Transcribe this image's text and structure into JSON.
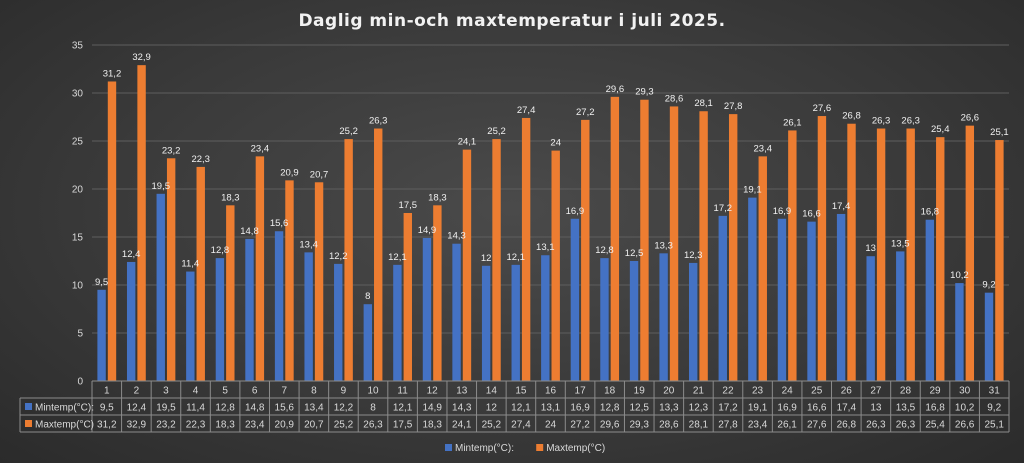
{
  "chart_data": {
    "type": "bar",
    "title": "Daglig min-och maxtemperatur i juli 2025.",
    "categories": [
      "1",
      "2",
      "3",
      "4",
      "5",
      "6",
      "7",
      "8",
      "9",
      "10",
      "11",
      "12",
      "13",
      "14",
      "15",
      "16",
      "17",
      "18",
      "19",
      "20",
      "21",
      "22",
      "23",
      "24",
      "25",
      "26",
      "27",
      "28",
      "29",
      "30",
      "31"
    ],
    "series": [
      {
        "name": "Mintemp(°C):",
        "color": "#4472c4",
        "values": [
          9.5,
          12.4,
          19.5,
          11.4,
          12.8,
          14.8,
          15.6,
          13.4,
          12.2,
          8,
          12.1,
          14.9,
          14.3,
          12,
          12.1,
          13.1,
          16.9,
          12.8,
          12.5,
          13.3,
          12.3,
          17.2,
          19.1,
          16.9,
          16.6,
          17.4,
          13,
          13.5,
          16.8,
          10.2,
          9.2
        ],
        "labels": [
          "9,5",
          "12,4",
          "19,5",
          "11,4",
          "12,8",
          "14,8",
          "15,6",
          "13,4",
          "12,2",
          "8",
          "12,1",
          "14,9",
          "14,3",
          "12",
          "12,1",
          "13,1",
          "16,9",
          "12,8",
          "12,5",
          "13,3",
          "12,3",
          "17,2",
          "19,1",
          "16,9",
          "16,6",
          "17,4",
          "13",
          "13,5",
          "16,8",
          "10,2",
          "9,2"
        ]
      },
      {
        "name": "Maxtemp(°C)",
        "color": "#ed7d31",
        "values": [
          31.2,
          32.9,
          23.2,
          22.3,
          18.3,
          23.4,
          20.9,
          20.7,
          25.2,
          26.3,
          17.5,
          18.3,
          24.1,
          25.2,
          27.4,
          24,
          27.2,
          29.6,
          29.3,
          28.6,
          28.1,
          27.8,
          23.4,
          26.1,
          27.6,
          26.8,
          26.3,
          26.3,
          25.4,
          26.6,
          25.1
        ],
        "labels": [
          "31,2",
          "32,9",
          "23,2",
          "22,3",
          "18,3",
          "23,4",
          "20,9",
          "20,7",
          "25,2",
          "26,3",
          "17,5",
          "18,3",
          "24,1",
          "25,2",
          "27,4",
          "24",
          "27,2",
          "29,6",
          "29,3",
          "28,6",
          "28,1",
          "27,8",
          "23,4",
          "26,1",
          "27,6",
          "26,8",
          "26,3",
          "26,3",
          "25,4",
          "26,6",
          "25,1"
        ]
      }
    ],
    "yticks": [
      "0",
      "5",
      "10",
      "15",
      "20",
      "25",
      "30",
      "35"
    ],
    "ylim": [
      0,
      35
    ],
    "grid": true,
    "legend": "bottom",
    "data_table": true
  }
}
